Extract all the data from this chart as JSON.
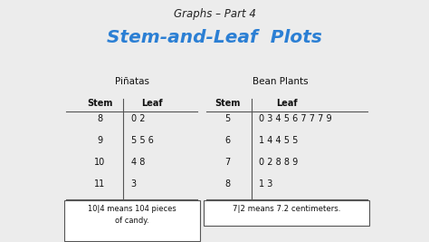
{
  "title_top": "Graphs – Part 4",
  "title_main": "Stem-and-Leaf  Plots",
  "bg_color": "#ececec",
  "table1_title": "Piñatas",
  "table1_stem_header": "Stem",
  "table1_leaf_header": "Leaf",
  "table1_rows": [
    [
      "8",
      "0 2"
    ],
    [
      "9",
      "5 5 6"
    ],
    [
      "10",
      "4 8"
    ],
    [
      "11",
      "3"
    ]
  ],
  "table1_note": "10|4 means 104 pieces\nof candy.",
  "table2_title": "Bean Plants",
  "table2_stem_header": "Stem",
  "table2_leaf_header": "Leaf",
  "table2_rows": [
    [
      "5",
      "0 3 4 5 6 7 7 7 9"
    ],
    [
      "6",
      "1 4 4 5 5"
    ],
    [
      "7",
      "0 2 8 8 9"
    ],
    [
      "8",
      "1 3"
    ]
  ],
  "table2_note": "7|2 means 7.2 centimeters.",
  "title_top_color": "#222222",
  "title_main_color": "#2b7fd4",
  "table_text_color": "#111111",
  "note_box_color": "#ffffff",
  "note_border_color": "#555555",
  "line_color": "#555555"
}
